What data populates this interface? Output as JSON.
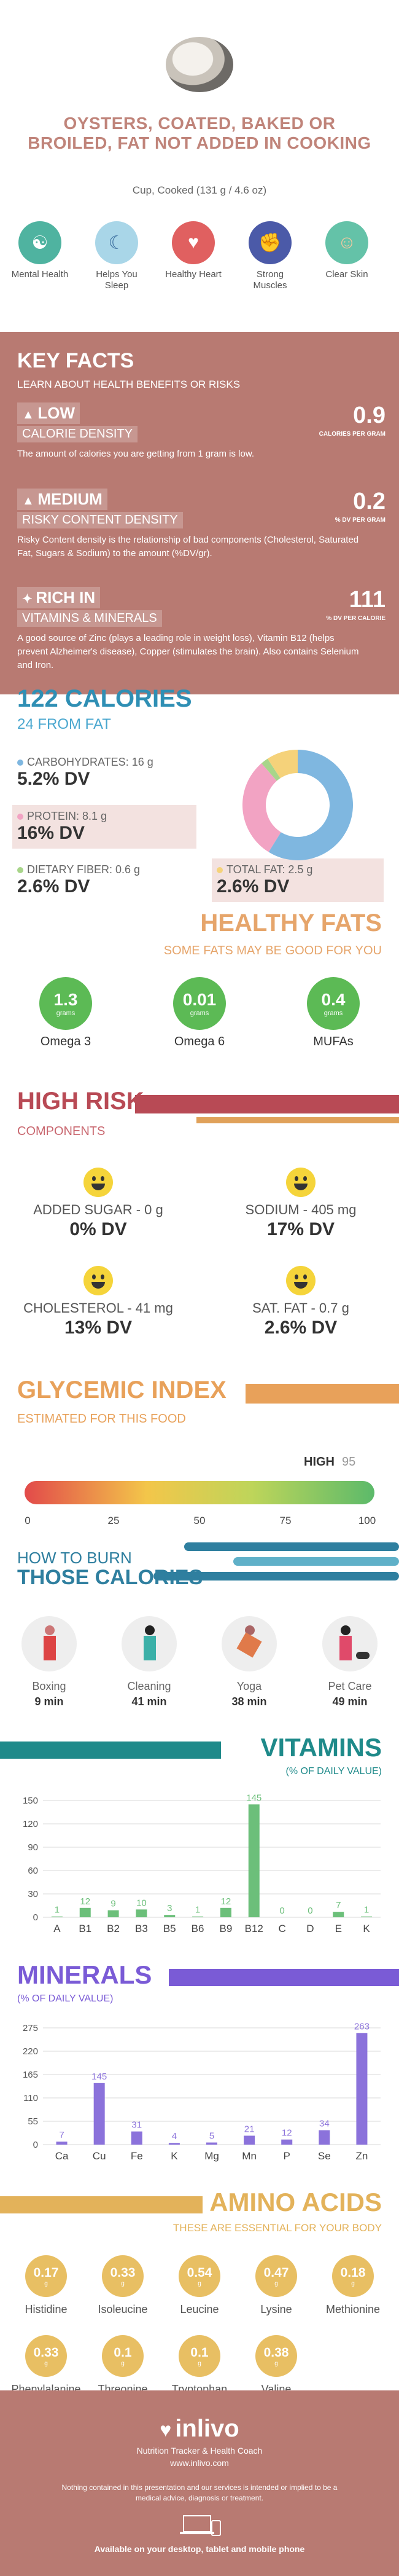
{
  "header": {
    "title": "OYSTERS, COATED, BAKED OR BROILED, FAT NOT ADDED IN COOKING",
    "serving": "Cup, Cooked (131 g / 4.6 oz)"
  },
  "benefits": [
    {
      "label": "Mental Health",
      "icon": "brain-icon",
      "color": "#4fb3a0"
    },
    {
      "label": "Helps You Sleep",
      "icon": "sleep-icon",
      "color": "#a9d6e8"
    },
    {
      "label": "Healthy Heart",
      "icon": "heart-icon",
      "color": "#e06060"
    },
    {
      "label": "Strong Muscles",
      "icon": "muscle-icon",
      "color": "#4b5aa8"
    },
    {
      "label": "Clear Skin",
      "icon": "face-icon",
      "color": "#64c2a8"
    }
  ],
  "key_facts": {
    "heading": "KEY FACTS",
    "subheading": "LEARN ABOUT HEALTH BENEFITS OR RISKS",
    "items": [
      {
        "level": "LOW",
        "name": "CALORIE DENSITY",
        "value": "0.9",
        "unit": "CALORIES PER GRAM",
        "text": "The amount of calories you are getting from 1 gram is low."
      },
      {
        "level": "MEDIUM",
        "name": "RISKY CONTENT DENSITY",
        "value": "0.2",
        "unit": "% DV PER GRAM",
        "text": "Risky Content density is the relationship of bad components (Cholesterol, Saturated Fat, Sugars & Sodium) to the amount (%DV/gr)."
      },
      {
        "level": "RICH IN",
        "name": "VITAMINS & MINERALS",
        "value": "111",
        "unit": "% DV PER CALORIE",
        "text": "A good source of Zinc (plays a leading role in weight loss), Vitamin B12 (helps prevent Alzheimer's disease), Copper (stimulates the brain). Also contains Selenium and Iron."
      }
    ]
  },
  "calories": {
    "heading": "122 CALORIES",
    "sub": "24 FROM FAT",
    "carbs": {
      "label": "CARBOHYDRATES: 16 g",
      "dv": "5.2% DV",
      "color": "#7fb7e0"
    },
    "protein": {
      "label": "PROTEIN: 8.1 g",
      "dv": "16% DV",
      "color": "#f2a3c3"
    },
    "fiber": {
      "label": "DIETARY FIBER: 0.6 g",
      "dv": "2.6% DV",
      "color": "#a8d58a"
    },
    "fat": {
      "label": "TOTAL FAT: 2.5 g",
      "dv": "2.6% DV",
      "color": "#f5d27a"
    },
    "donut": [
      {
        "name": "carbs",
        "value": 16,
        "color": "#7fb7e0"
      },
      {
        "name": "protein",
        "value": 8.1,
        "color": "#f2a3c3"
      },
      {
        "name": "fiber",
        "value": 0.6,
        "color": "#a8d58a"
      },
      {
        "name": "fat",
        "value": 2.5,
        "color": "#f5d27a"
      }
    ]
  },
  "fats": {
    "heading": "HEALTHY FATS",
    "sub": "SOME FATS MAY BE GOOD FOR YOU",
    "unit": "grams",
    "items": [
      {
        "value": "1.3",
        "label": "Omega 3"
      },
      {
        "value": "0.01",
        "label": "Omega 6"
      },
      {
        "value": "0.4",
        "label": "MUFAs"
      }
    ]
  },
  "risk": {
    "heading": "HIGH RISK",
    "sub": "COMPONENTS",
    "items": [
      {
        "label": "ADDED SUGAR - 0 g",
        "dv": "0% DV"
      },
      {
        "label": "SODIUM - 405 mg",
        "dv": "17% DV"
      },
      {
        "label": "CHOLESTEROL - 41 mg",
        "dv": "13% DV"
      },
      {
        "label": "SAT. FAT - 0.7 g",
        "dv": "2.6% DV"
      }
    ]
  },
  "glycemic": {
    "heading": "GLYCEMIC INDEX",
    "sub": "ESTIMATED FOR THIS FOOD",
    "level": "HIGH",
    "value": "95",
    "ticks": [
      "0",
      "25",
      "50",
      "75",
      "100"
    ]
  },
  "burn": {
    "heading1": "HOW TO BURN",
    "heading2": "THOSE CALORIES",
    "items": [
      {
        "label": "Boxing",
        "time": "9 min"
      },
      {
        "label": "Cleaning",
        "time": "41 min"
      },
      {
        "label": "Yoga",
        "time": "38 min"
      },
      {
        "label": "Pet Care",
        "time": "49 min"
      }
    ]
  },
  "vitamins": {
    "heading": "VITAMINS",
    "sub": "(% OF DAILY VALUE)"
  },
  "minerals": {
    "heading": "MINERALS",
    "sub": "(% OF DAILY VALUE)"
  },
  "amino": {
    "heading": "AMINO ACIDS",
    "sub": "THESE ARE ESSENTIAL FOR YOUR BODY",
    "unit": "g",
    "items": [
      {
        "value": "0.17",
        "label": "Histidine"
      },
      {
        "value": "0.33",
        "label": "Isoleucine"
      },
      {
        "value": "0.54",
        "label": "Leucine"
      },
      {
        "value": "0.47",
        "label": "Lysine"
      },
      {
        "value": "0.18",
        "label": "Methionine"
      },
      {
        "value": "0.33",
        "label": "Phenylalanine"
      },
      {
        "value": "0.1",
        "label": "Threonine"
      },
      {
        "value": "0.1",
        "label": "Tryptophan"
      },
      {
        "value": "0.38",
        "label": "Valine"
      }
    ]
  },
  "footer": {
    "logo": "inlivo",
    "tagline": "Nutrition Tracker & Health Coach",
    "url": "www.inlivo.com",
    "disclaimer": "Nothing contained in this presentation and our services is intended or implied to be a medical advice, diagnosis or treatment.",
    "available": "Available on your desktop, tablet and mobile phone"
  },
  "chart_data": [
    {
      "type": "bar",
      "categories": [
        "A",
        "B1",
        "B2",
        "B3",
        "B5",
        "B6",
        "B9",
        "B12",
        "C",
        "D",
        "E",
        "K"
      ],
      "values": [
        1,
        12,
        9,
        10,
        3,
        1,
        12,
        145,
        0,
        0,
        7,
        1
      ],
      "ylim": [
        0,
        150
      ],
      "yticks": [
        0,
        30,
        60,
        90,
        120,
        150
      ],
      "color": "#6cbf7a"
    },
    {
      "type": "bar",
      "categories": [
        "Ca",
        "Cu",
        "Fe",
        "K",
        "Mg",
        "Mn",
        "P",
        "Se",
        "Zn"
      ],
      "values": [
        7,
        145,
        31,
        4,
        5,
        21,
        12,
        34,
        263
      ],
      "ylim": [
        0,
        275
      ],
      "yticks": [
        0,
        55,
        110,
        165,
        220,
        275
      ],
      "color": "#8b72db"
    }
  ]
}
